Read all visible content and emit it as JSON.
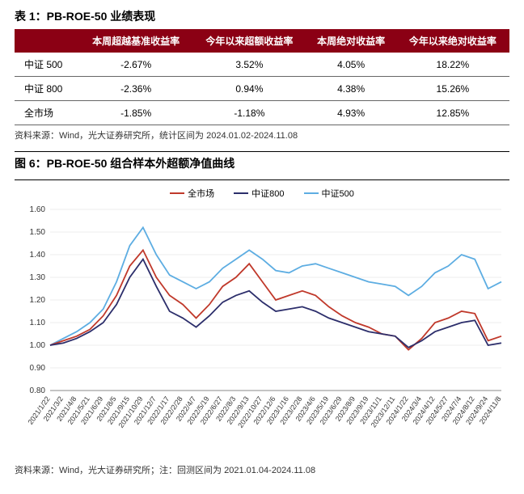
{
  "table": {
    "title": "表 1：PB-ROE-50 业绩表现",
    "columns": [
      "",
      "本周超越基准收益率",
      "今年以来超额收益率",
      "本周绝对收益率",
      "今年以来绝对收益率"
    ],
    "rows": [
      {
        "label": "中证 500",
        "cells": [
          "-2.67%",
          "3.52%",
          "4.05%",
          "18.22%"
        ]
      },
      {
        "label": "中证 800",
        "cells": [
          "-2.36%",
          "0.94%",
          "4.38%",
          "15.26%"
        ]
      },
      {
        "label": "全市场",
        "cells": [
          "-1.85%",
          "-1.18%",
          "4.93%",
          "12.85%"
        ]
      }
    ],
    "source": "资料来源：Wind，光大证券研究所，统计区间为 2024.01.02-2024.11.08",
    "header_bg": "#8b0014",
    "header_color": "#ffffff"
  },
  "chart": {
    "title": "图 6：PB-ROE-50 组合样本外超额净值曲线",
    "source": "资料来源：Wind，光大证券研究所；注：回测区间为 2021.01.04-2024.11.08",
    "type": "line",
    "ylim": [
      0.8,
      1.6
    ],
    "ytick_step": 0.1,
    "background_color": "#ffffff",
    "grid_color": "#dddddd",
    "axis_fontsize": 10,
    "line_width": 1.8,
    "x_labels": [
      "2021/1/22",
      "2021/3/2",
      "2021/4/8",
      "2021/5/21",
      "2021/6/29",
      "2021/8/5",
      "2021/9/15",
      "2021/10/29",
      "2021/12/7",
      "2022/1/17",
      "2022/2/28",
      "2022/4/7",
      "2022/5/19",
      "2022/6/27",
      "2022/8/3",
      "2022/9/13",
      "2022/10/27",
      "2022/12/6",
      "2023/1/16",
      "2023/2/28",
      "2023/4/6",
      "2023/5/19",
      "2023/6/29",
      "2023/8/9",
      "2023/9/19",
      "2023/11/1",
      "2023/12/11",
      "2024/1/22",
      "2024/3/4",
      "2024/4/12",
      "2024/5/27",
      "2024/7/4",
      "2024/8/12",
      "2024/9/24",
      "2024/11/8"
    ],
    "legend": [
      {
        "name": "全市场",
        "color": "#c0392b"
      },
      {
        "name": "中证800",
        "color": "#2c2e6b"
      },
      {
        "name": "中证500",
        "color": "#5dade2"
      }
    ],
    "series": {
      "qsc": {
        "color": "#c0392b",
        "values": [
          1.0,
          1.02,
          1.04,
          1.07,
          1.13,
          1.22,
          1.35,
          1.42,
          1.3,
          1.22,
          1.18,
          1.12,
          1.18,
          1.26,
          1.3,
          1.36,
          1.28,
          1.2,
          1.22,
          1.24,
          1.22,
          1.17,
          1.13,
          1.1,
          1.08,
          1.05,
          1.04,
          0.98,
          1.03,
          1.1,
          1.12,
          1.15,
          1.14,
          1.02,
          1.04
        ]
      },
      "zz800": {
        "color": "#2c2e6b",
        "values": [
          1.0,
          1.01,
          1.03,
          1.06,
          1.1,
          1.18,
          1.3,
          1.38,
          1.26,
          1.15,
          1.12,
          1.08,
          1.13,
          1.19,
          1.22,
          1.24,
          1.19,
          1.15,
          1.16,
          1.17,
          1.15,
          1.12,
          1.1,
          1.08,
          1.06,
          1.05,
          1.04,
          0.99,
          1.02,
          1.06,
          1.08,
          1.1,
          1.11,
          1.0,
          1.01
        ]
      },
      "zz500": {
        "color": "#5dade2",
        "values": [
          1.0,
          1.03,
          1.06,
          1.1,
          1.16,
          1.28,
          1.44,
          1.52,
          1.4,
          1.31,
          1.28,
          1.25,
          1.28,
          1.34,
          1.38,
          1.42,
          1.38,
          1.33,
          1.32,
          1.35,
          1.36,
          1.34,
          1.32,
          1.3,
          1.28,
          1.27,
          1.26,
          1.22,
          1.26,
          1.32,
          1.35,
          1.4,
          1.38,
          1.25,
          1.28
        ]
      }
    }
  }
}
